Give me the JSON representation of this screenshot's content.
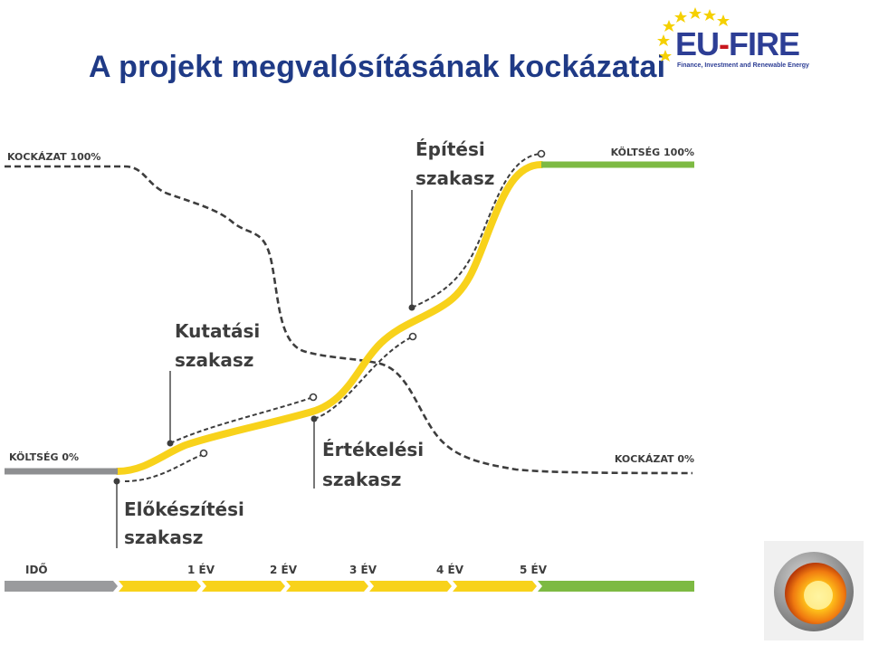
{
  "title": "A projekt megvalósításának kockázatai",
  "logo": {
    "name_main": "EU",
    "name_dash": "-",
    "name_end": "FIRE",
    "subtitle": "Finance, Investment and Renewable Energy"
  },
  "labels": {
    "risk_100": "KOCKÁZAT 100%",
    "risk_0": "KOCKÁZAT 0%",
    "cost_0": "KÖLTSÉG 0%",
    "cost_100": "KÖLTSÉG 100%"
  },
  "phases": [
    {
      "line1": "Előkészítési",
      "line2": "szakasz"
    },
    {
      "line1": "Kutatási",
      "line2": "szakasz"
    },
    {
      "line1": "Értékelési",
      "line2": "szakasz"
    },
    {
      "line1": "Építési",
      "line2": "szakasz"
    }
  ],
  "timeline": {
    "label": "IDŐ",
    "years": [
      "1 ÉV",
      "2 ÉV",
      "3 ÉV",
      "4 ÉV",
      "5 ÉV"
    ]
  },
  "colors": {
    "title": "#1f3a86",
    "cost_curve": "#f8d21b",
    "cost_high": "#7dba43",
    "cost_low": "#8e8f91",
    "risk_curve": "#3d3d3d"
  }
}
